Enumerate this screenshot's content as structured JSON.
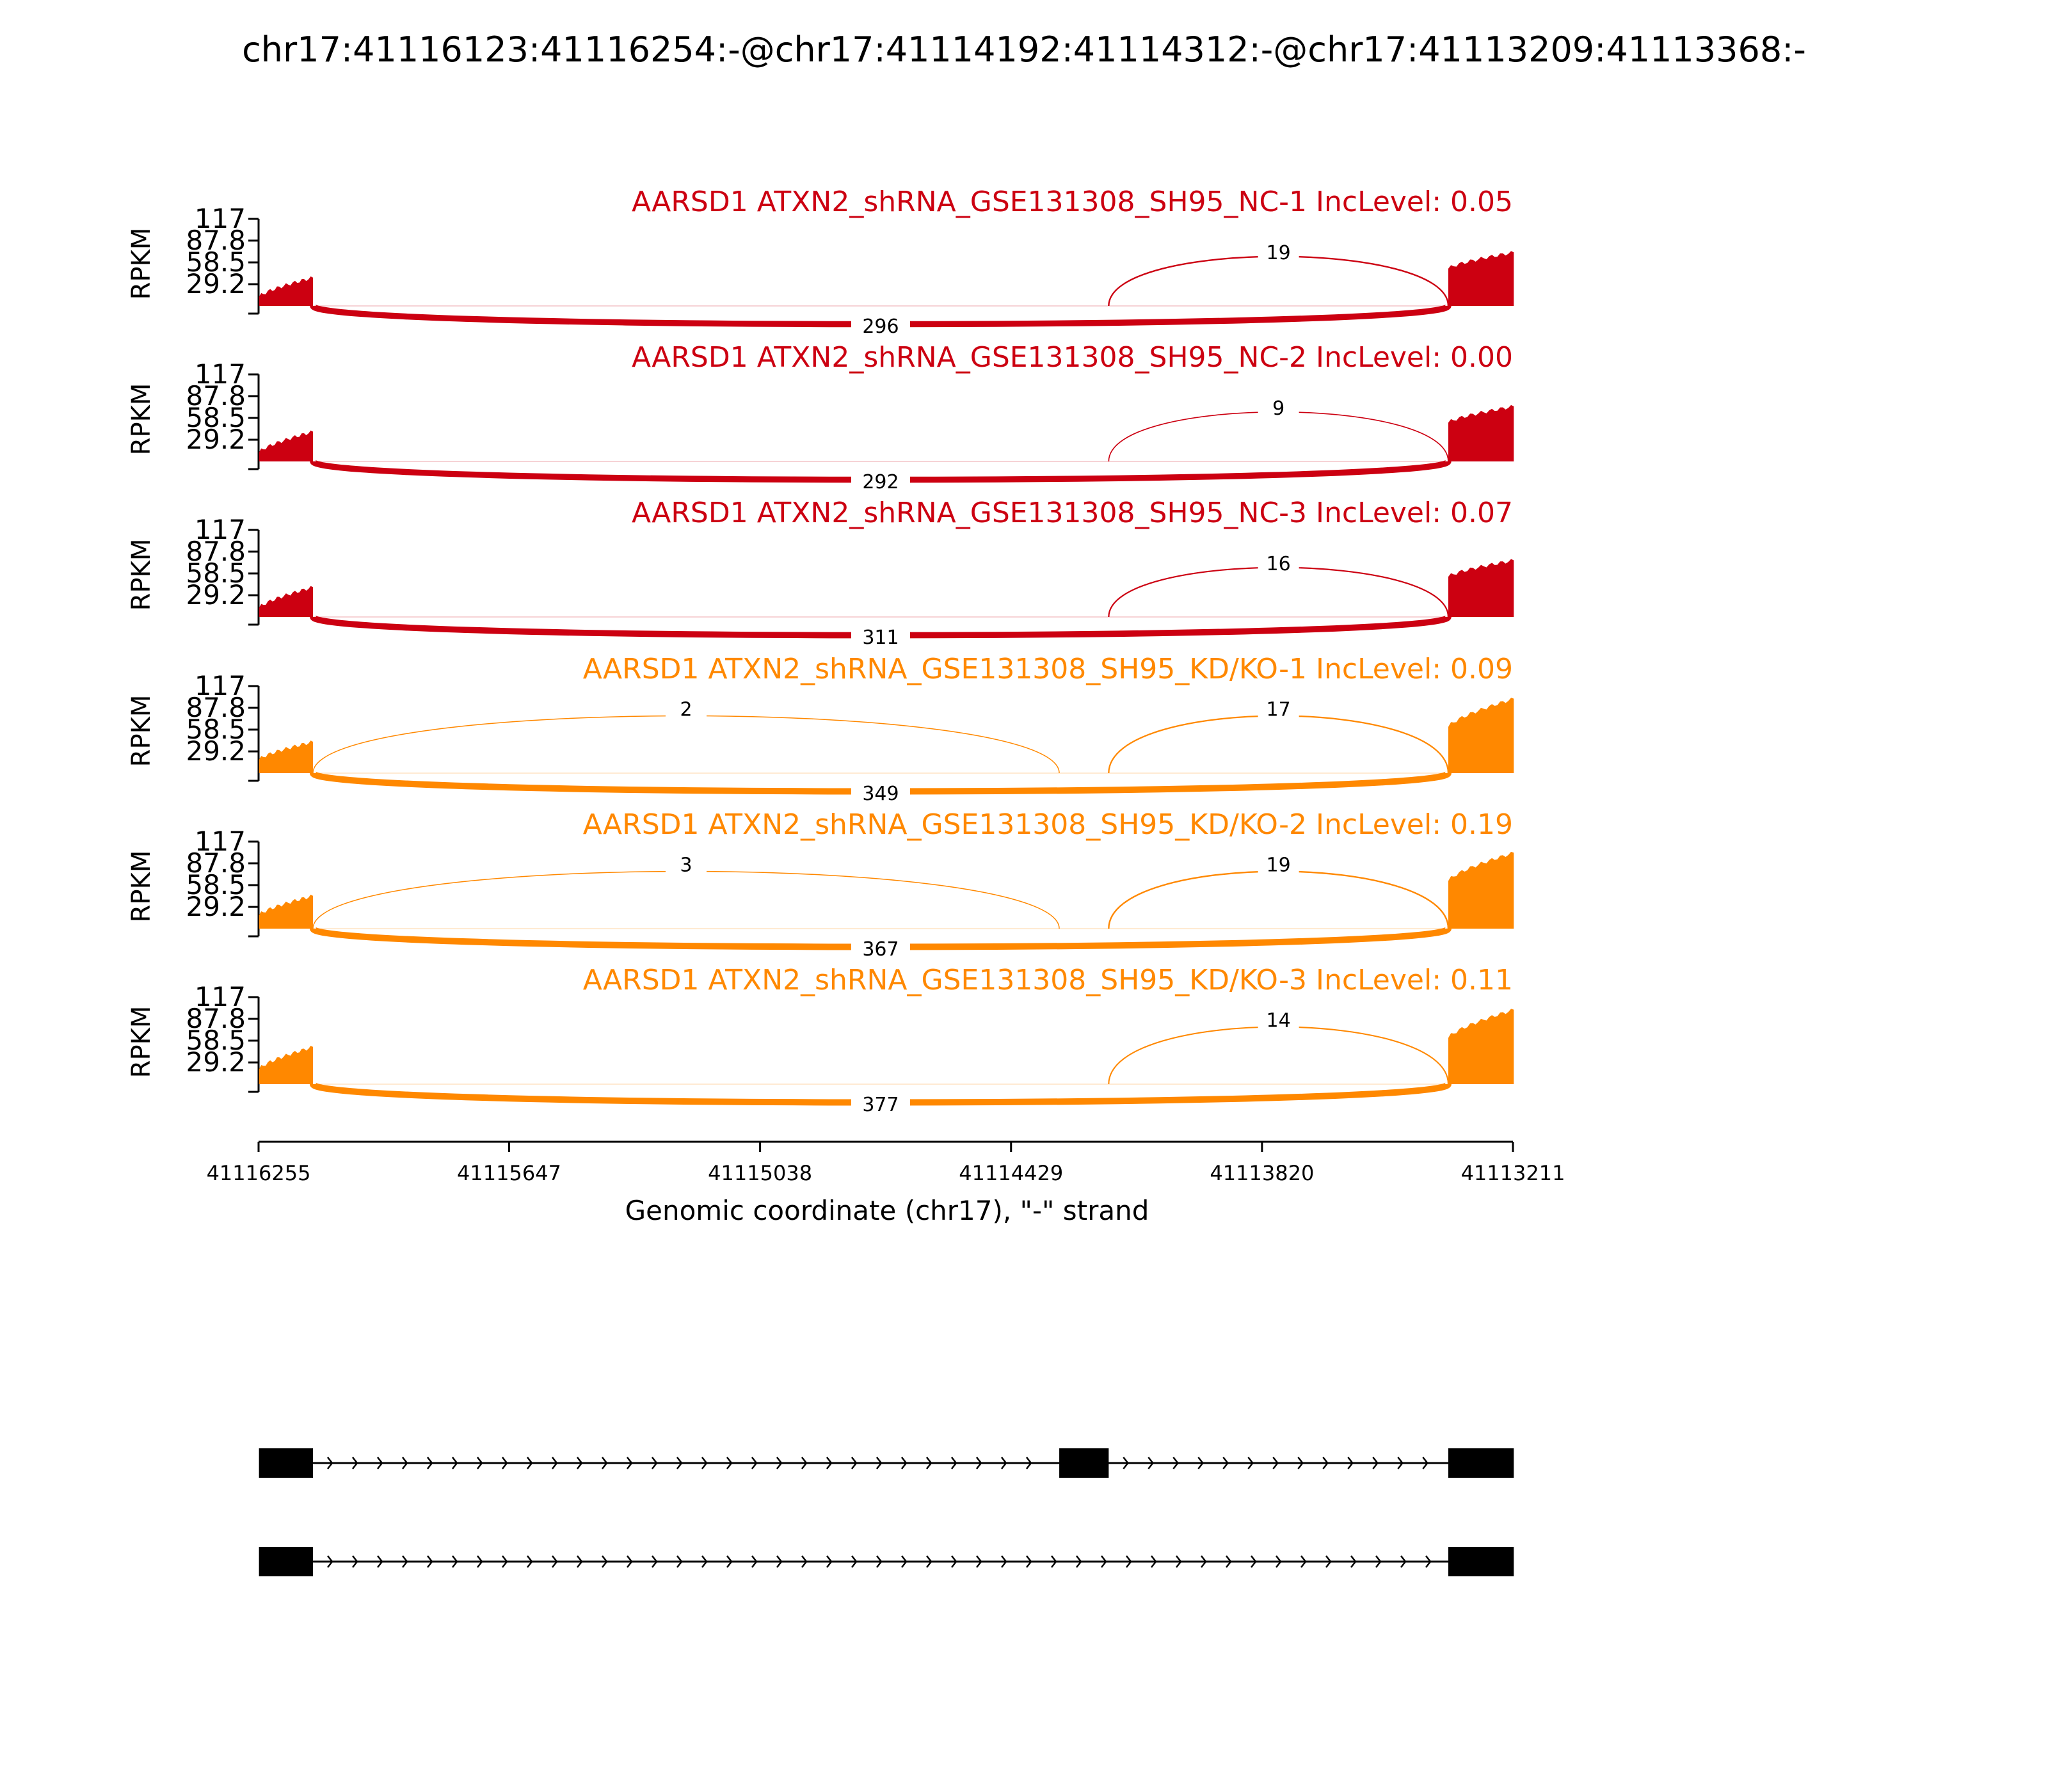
{
  "title": "chr17:41116123:41116254:-@chr17:41114192:41114312:-@chr17:41113209:41113368:-",
  "colors": {
    "nc": "#cc0011",
    "kd": "#ff8800",
    "axis": "#000000"
  },
  "chart_data": {
    "type": "area",
    "ylabel": "RPKM",
    "y_ticks": [
      "117",
      "87.8",
      "58.5",
      "29.2"
    ],
    "y_tick_values": [
      117,
      87.8,
      58.5,
      29.2
    ],
    "ylim": [
      0,
      117
    ],
    "x_ticks": [
      "41116255",
      "41115647",
      "41115038",
      "41114429",
      "41113820",
      "41113211"
    ],
    "x_tick_values": [
      41116255,
      41115647,
      41115038,
      41114429,
      41113820,
      41113211
    ],
    "xlim": [
      41116255,
      41113211
    ],
    "xlabel": "Genomic coordinate (chr17), \"-\" strand",
    "exons": [
      {
        "start": 41116254,
        "end": 41116123
      },
      {
        "start": 41114312,
        "end": 41114192
      },
      {
        "start": 41113368,
        "end": 41113209
      }
    ],
    "series": [
      {
        "label": "AARSD1 ATXN2_shRNA_GSE131308_SH95_NC-1 IncLevel: 0.05",
        "group": "nc",
        "exon1_cov": [
          12,
          38
        ],
        "exon2_cov": null,
        "exon3_cov": [
          50,
          72
        ],
        "junctions": [
          {
            "from": 1,
            "to": 3,
            "count": "296"
          },
          {
            "from": 2,
            "to": 3,
            "count": "19"
          }
        ]
      },
      {
        "label": "AARSD1 ATXN2_shRNA_GSE131308_SH95_NC-2 IncLevel: 0.00",
        "group": "nc",
        "exon1_cov": [
          12,
          40
        ],
        "exon2_cov": null,
        "exon3_cov": [
          52,
          74
        ],
        "junctions": [
          {
            "from": 1,
            "to": 3,
            "count": "292"
          },
          {
            "from": 2,
            "to": 3,
            "count": "9"
          }
        ]
      },
      {
        "label": "AARSD1 ATXN2_shRNA_GSE131308_SH95_NC-3 IncLevel: 0.07",
        "group": "nc",
        "exon1_cov": [
          12,
          40
        ],
        "exon2_cov": null,
        "exon3_cov": [
          54,
          76
        ],
        "junctions": [
          {
            "from": 1,
            "to": 3,
            "count": "311"
          },
          {
            "from": 2,
            "to": 3,
            "count": "16"
          }
        ]
      },
      {
        "label": "AARSD1 ATXN2_shRNA_GSE131308_SH95_KD/KO-1 IncLevel: 0.09",
        "group": "kd",
        "exon1_cov": [
          18,
          42
        ],
        "exon2_cov": null,
        "exon3_cov": [
          62,
          100
        ],
        "junctions": [
          {
            "from": 1,
            "to": 3,
            "count": "349"
          },
          {
            "from": 1,
            "to": 2,
            "count": "2"
          },
          {
            "from": 2,
            "to": 3,
            "count": "17"
          }
        ]
      },
      {
        "label": "AARSD1 ATXN2_shRNA_GSE131308_SH95_KD/KO-2 IncLevel: 0.19",
        "group": "kd",
        "exon1_cov": [
          18,
          44
        ],
        "exon2_cov": null,
        "exon3_cov": [
          64,
          102
        ],
        "junctions": [
          {
            "from": 1,
            "to": 3,
            "count": "367"
          },
          {
            "from": 1,
            "to": 2,
            "count": "3"
          },
          {
            "from": 2,
            "to": 3,
            "count": "19"
          }
        ]
      },
      {
        "label": "AARSD1 ATXN2_shRNA_GSE131308_SH95_KD/KO-3 IncLevel: 0.11",
        "group": "kd",
        "exon1_cov": [
          20,
          50
        ],
        "exon2_cov": null,
        "exon3_cov": [
          62,
          100
        ],
        "junctions": [
          {
            "from": 1,
            "to": 3,
            "count": "377"
          },
          {
            "from": 2,
            "to": 3,
            "count": "14"
          }
        ]
      }
    ],
    "isoforms": [
      {
        "exons": [
          1,
          2,
          3
        ]
      },
      {
        "exons": [
          1,
          3
        ]
      }
    ]
  }
}
